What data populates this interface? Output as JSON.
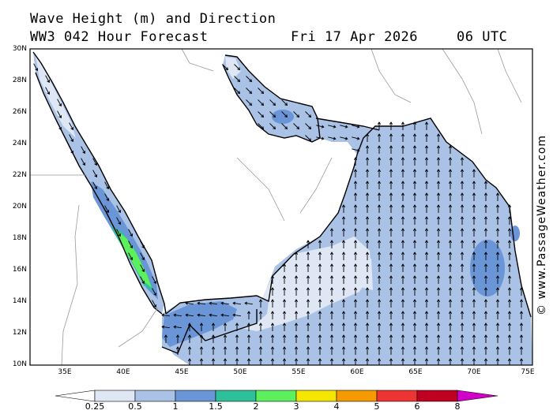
{
  "title": {
    "line1": "Wave Height (m) and Direction",
    "line2": "WW3 042 Hour Forecast",
    "date": "Fri 17 Apr 2026",
    "time": "06 UTC"
  },
  "copyright": "© www.PassageWeather.com",
  "axes": {
    "lat_labels": [
      "30N",
      "28N",
      "26N",
      "24N",
      "22N",
      "20N",
      "18N",
      "16N",
      "14N",
      "12N",
      "10N"
    ],
    "lon_labels": [
      "35E",
      "40E",
      "45E",
      "50E",
      "55E",
      "60E",
      "65E",
      "70E",
      "75E"
    ],
    "lon_range": [
      32,
      75
    ],
    "lat_range": [
      10,
      30
    ]
  },
  "colorbar": {
    "labels": [
      "0.25",
      "0.5",
      "1",
      "1.5",
      "2",
      "3",
      "4",
      "5",
      "6",
      "8"
    ],
    "colors": [
      "#ffffff",
      "#dfe7f5",
      "#a9c2e6",
      "#6a95d6",
      "#2ec09a",
      "#5cf05c",
      "#f5e600",
      "#f59a00",
      "#ee3333",
      "#c00020",
      "#d000c8"
    ]
  },
  "colors": {
    "land": "#ffffff",
    "sea_light": "#dfe7f5",
    "sea_mid": "#a9c2e6",
    "sea_dark": "#6a95d6",
    "teal": "#2ec09a",
    "green": "#5cf05c"
  }
}
